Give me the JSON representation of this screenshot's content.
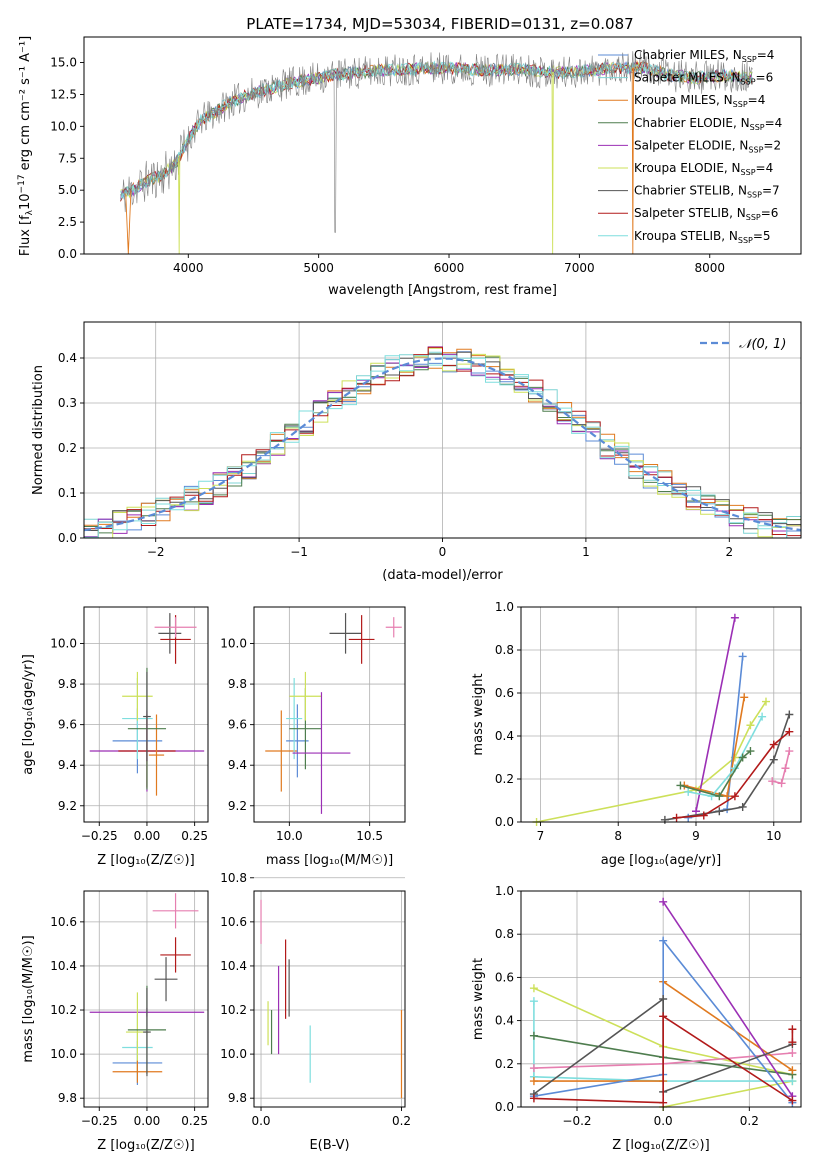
{
  "title": "PLATE=1734, MJD=53034, FIBERID=0131, z=0.087",
  "colors": {
    "chabrier_miles": "#5b8bd6",
    "salpeter_miles": "#7fd4d4",
    "kroupa_miles": "#e07a20",
    "chabrier_elodie": "#4e7d4e",
    "salpeter_elodie": "#9b2fb5",
    "kroupa_elodie": "#cde05a",
    "chabrier_stelib": "#555555",
    "salpeter_stelib": "#b21a1a",
    "kroupa_stelib": "#7fdede",
    "pink": "#e67fb0",
    "normal": "#5b8bd6"
  },
  "chart_data": [
    {
      "id": "spectrum",
      "type": "line",
      "title": "PLATE=1734, MJD=53034, FIBERID=0131, z=0.087",
      "xlabel": "wavelength [Angstrom, rest frame]",
      "ylabel_main": "Flux [f",
      "ylabel_sub": "λ",
      "ylabel_rest": "10",
      "ylabel_exp": "−17",
      "ylabel_units": "erg cm",
      "xlim": [
        3200,
        8700
      ],
      "ylim": [
        0,
        17
      ],
      "xticks": [
        "4000",
        "5000",
        "6000",
        "7000",
        "8000"
      ],
      "yticks": [
        "0.0",
        "2.5",
        "5.0",
        "7.5",
        "10.0",
        "12.5",
        "15.0"
      ],
      "legend_position": "upper-right",
      "legend": [
        {
          "name": "Chabrier MILES, N",
          "sub": "SSP",
          "val": "=4",
          "color": "#5b8bd6"
        },
        {
          "name": "Salpeter MILES, N",
          "sub": "SSP",
          "val": "=6",
          "color": "#7fd4d4"
        },
        {
          "name": "Kroupa MILES, N",
          "sub": "SSP",
          "val": "=4",
          "color": "#e07a20"
        },
        {
          "name": "Chabrier ELODIE, N",
          "sub": "SSP",
          "val": "=4",
          "color": "#4e7d4e"
        },
        {
          "name": "Salpeter ELODIE, N",
          "sub": "SSP",
          "val": "=2",
          "color": "#9b2fb5"
        },
        {
          "name": "Kroupa ELODIE, N",
          "sub": "SSP",
          "val": "=4",
          "color": "#cde05a"
        },
        {
          "name": "Chabrier STELIB, N",
          "sub": "SSP",
          "val": "=7",
          "color": "#555555"
        },
        {
          "name": "Salpeter STELIB, N",
          "sub": "SSP",
          "val": "=6",
          "color": "#b21a1a"
        },
        {
          "name": "Kroupa STELIB, N",
          "sub": "SSP",
          "val": "=5",
          "color": "#7fdede"
        }
      ],
      "continuum": {
        "x": [
          3480,
          3600,
          3700,
          3800,
          3900,
          4000,
          4100,
          4200,
          4300,
          4500,
          4700,
          4900,
          5100,
          5300,
          5500,
          5700,
          5900,
          6100,
          6300,
          6500,
          6700,
          6900,
          7100,
          7300,
          7500,
          7700,
          7900,
          8100,
          8300
        ],
        "y": [
          4.5,
          5.2,
          5.8,
          6.2,
          7.0,
          9.0,
          10.5,
          11.0,
          11.8,
          12.6,
          13.2,
          13.6,
          14.0,
          14.2,
          14.4,
          14.5,
          14.6,
          14.5,
          14.4,
          14.5,
          14.3,
          14.2,
          14.4,
          14.6,
          14.6,
          14.0,
          13.8,
          14.0,
          13.8
        ]
      }
    },
    {
      "id": "residuals",
      "type": "histogram",
      "xlabel": "(data-model)/error",
      "ylabel": "Normed distribution",
      "xlim": [
        -2.5,
        2.5
      ],
      "ylim": [
        0,
        0.48
      ],
      "xticks": [
        "−2",
        "−1",
        "0",
        "1",
        "2"
      ],
      "yticks": [
        "0.0",
        "0.1",
        "0.2",
        "0.3",
        "0.4"
      ],
      "bin_width": 0.1,
      "grid": true,
      "legend_label": "𝒩(0, 1)",
      "legend_position": "upper-right"
    },
    {
      "id": "age_vs_Z",
      "type": "scatter",
      "xlabel": "Z [log₁₀(Z/Z☉)]",
      "ylabel": "age  [log₁₀(age/yr)]",
      "xlim": [
        -0.33,
        0.32
      ],
      "ylim": [
        9.12,
        10.18
      ],
      "xticks": [
        "−0.25",
        "0.00",
        "0.25"
      ],
      "yticks": [
        "9.2",
        "9.4",
        "9.6",
        "9.8",
        "10.0"
      ],
      "points": [
        {
          "x": 0.0,
          "y": 9.47,
          "xerr": 0.3,
          "yerr": 0.2,
          "color": "#9b2fb5"
        },
        {
          "x": 0.0,
          "y": 9.47,
          "xerr": 0.15,
          "yerr": 0.18,
          "color": "#b21a1a"
        },
        {
          "x": -0.05,
          "y": 9.52,
          "xerr": 0.13,
          "yerr": 0.16,
          "color": "#5b8bd6"
        },
        {
          "x": 0.05,
          "y": 9.45,
          "xerr": 0.04,
          "yerr": 0.2,
          "color": "#e07a20"
        },
        {
          "x": -0.05,
          "y": 9.63,
          "xerr": 0.08,
          "yerr": 0.2,
          "color": "#7fdede"
        },
        {
          "x": -0.05,
          "y": 9.74,
          "xerr": 0.08,
          "yerr": 0.12,
          "color": "#cde05a"
        },
        {
          "x": 0.0,
          "y": 9.58,
          "xerr": 0.1,
          "yerr": 0.3,
          "color": "#4e7d4e"
        },
        {
          "x": 0.0,
          "y": 9.64,
          "xerr": 0.02,
          "yerr": 0.22,
          "color": "#555555"
        },
        {
          "x": 0.12,
          "y": 10.05,
          "xerr": 0.06,
          "yerr": 0.1,
          "color": "#555555"
        },
        {
          "x": 0.15,
          "y": 10.02,
          "xerr": 0.08,
          "yerr": 0.12,
          "color": "#b21a1a"
        },
        {
          "x": 0.15,
          "y": 10.08,
          "xerr": 0.11,
          "yerr": 0.05,
          "color": "#e67fb0"
        }
      ]
    },
    {
      "id": "age_vs_mass",
      "type": "scatter",
      "xlabel": "mass [log₁₀(M/M☉)]",
      "ylabel": "",
      "xlim": [
        9.78,
        10.72
      ],
      "ylim": [
        9.12,
        10.18
      ],
      "xticks": [
        "10.0",
        "10.5"
      ],
      "yticks": [
        "9.2",
        "9.4",
        "9.6",
        "9.8",
        "10.0"
      ],
      "points": [
        {
          "x": 9.95,
          "y": 9.47,
          "xerr": 0.1,
          "yerr": 0.2,
          "color": "#e07a20"
        },
        {
          "x": 10.05,
          "y": 9.52,
          "xerr": 0.07,
          "yerr": 0.18,
          "color": "#5b8bd6"
        },
        {
          "x": 10.03,
          "y": 9.63,
          "xerr": 0.05,
          "yerr": 0.2,
          "color": "#7fdede"
        },
        {
          "x": 10.1,
          "y": 9.58,
          "xerr": 0.1,
          "yerr": 0.2,
          "color": "#4e7d4e"
        },
        {
          "x": 10.1,
          "y": 9.74,
          "xerr": 0.1,
          "yerr": 0.12,
          "color": "#cde05a"
        },
        {
          "x": 10.2,
          "y": 9.46,
          "xerr": 0.18,
          "yerr": 0.3,
          "color": "#9b2fb5"
        },
        {
          "x": 10.35,
          "y": 10.05,
          "xerr": 0.1,
          "yerr": 0.1,
          "color": "#555555"
        },
        {
          "x": 10.45,
          "y": 10.02,
          "xerr": 0.08,
          "yerr": 0.12,
          "color": "#b21a1a"
        },
        {
          "x": 10.65,
          "y": 10.08,
          "xerr": 0.05,
          "yerr": 0.05,
          "color": "#e67fb0"
        }
      ]
    },
    {
      "id": "weight_vs_age",
      "type": "line",
      "xlabel": "age  [log₁₀(age/yr)]",
      "ylabel": "mass weight",
      "xlim": [
        6.75,
        10.35
      ],
      "ylim": [
        0,
        1.0
      ],
      "xticks": [
        "7",
        "8",
        "9",
        "10"
      ],
      "yticks": [
        "0.0",
        "0.2",
        "0.4",
        "0.6",
        "0.8",
        "1.0"
      ],
      "series": [
        {
          "color": "#cde05a",
          "x": [
            6.95,
            9.0,
            9.5,
            9.7,
            9.9
          ],
          "y": [
            0.0,
            0.15,
            0.3,
            0.45,
            0.56
          ]
        },
        {
          "color": "#9b2fb5",
          "x": [
            9.0,
            9.5
          ],
          "y": [
            0.05,
            0.95
          ]
        },
        {
          "color": "#5b8bd6",
          "x": [
            8.9,
            9.4,
            9.6
          ],
          "y": [
            0.02,
            0.06,
            0.77
          ]
        },
        {
          "color": "#e07a20",
          "x": [
            8.85,
            9.4,
            9.62
          ],
          "y": [
            0.17,
            0.12,
            0.58
          ]
        },
        {
          "color": "#7fdede",
          "x": [
            8.9,
            9.2,
            9.5,
            9.85
          ],
          "y": [
            0.14,
            0.12,
            0.25,
            0.49
          ]
        },
        {
          "color": "#4e7d4e",
          "x": [
            8.8,
            9.3,
            9.6,
            9.7
          ],
          "y": [
            0.17,
            0.12,
            0.3,
            0.33
          ]
        },
        {
          "color": "#555555",
          "x": [
            8.6,
            9.3,
            9.6,
            10.0,
            10.2
          ],
          "y": [
            0.01,
            0.05,
            0.07,
            0.29,
            0.5
          ]
        },
        {
          "color": "#b21a1a",
          "x": [
            8.75,
            9.1,
            9.5,
            10.0,
            10.2
          ],
          "y": [
            0.02,
            0.03,
            0.12,
            0.36,
            0.42
          ]
        },
        {
          "color": "#e67fb0",
          "x": [
            9.98,
            10.1,
            10.15,
            10.2
          ],
          "y": [
            0.19,
            0.18,
            0.25,
            0.33
          ]
        }
      ]
    },
    {
      "id": "mass_vs_Z",
      "type": "scatter",
      "xlabel": "Z [log₁₀(Z/Z☉)]",
      "ylabel": "mass [log₁₀(M/M☉)]",
      "xlim": [
        -0.33,
        0.32
      ],
      "ylim": [
        9.76,
        10.74
      ],
      "xticks": [
        "−0.25",
        "0.00",
        "0.25"
      ],
      "yticks": [
        "9.8",
        "10.0",
        "10.2",
        "10.4",
        "10.6"
      ],
      "points": [
        {
          "x": 0.0,
          "y": 10.19,
          "xerr": 0.3,
          "yerr": 0.02,
          "color": "#9b2fb5"
        },
        {
          "x": -0.05,
          "y": 9.96,
          "xerr": 0.13,
          "yerr": 0.1,
          "color": "#5b8bd6"
        },
        {
          "x": -0.05,
          "y": 10.03,
          "xerr": 0.08,
          "yerr": 0.15,
          "color": "#7fdede"
        },
        {
          "x": -0.05,
          "y": 10.1,
          "xerr": 0.06,
          "yerr": 0.18,
          "color": "#cde05a"
        },
        {
          "x": 0.0,
          "y": 10.11,
          "xerr": 0.1,
          "yerr": 0.2,
          "color": "#4e7d4e"
        },
        {
          "x": -0.05,
          "y": 9.92,
          "xerr": 0.13,
          "yerr": 0.05,
          "color": "#e07a20"
        },
        {
          "x": 0.0,
          "y": 10.1,
          "xerr": 0.02,
          "yerr": 0.2,
          "color": "#555555"
        },
        {
          "x": 0.1,
          "y": 10.34,
          "xerr": 0.06,
          "yerr": 0.1,
          "color": "#555555"
        },
        {
          "x": 0.15,
          "y": 10.45,
          "xerr": 0.08,
          "yerr": 0.08,
          "color": "#b21a1a"
        },
        {
          "x": 0.15,
          "y": 10.65,
          "xerr": 0.12,
          "yerr": 0.08,
          "color": "#e67fb0"
        }
      ]
    },
    {
      "id": "mass_vs_EBV",
      "type": "scatter",
      "xlabel": "E(B-V)",
      "ylabel": "",
      "xlim": [
        -0.01,
        0.205
      ],
      "ylim": [
        9.76,
        10.74
      ],
      "xticks": [
        "0.0",
        "0.2"
      ],
      "yticks": [
        "9.8",
        "10.0",
        "10.2",
        "10.4",
        "10.6",
        "10.8"
      ],
      "points": [
        {
          "x": 0.0,
          "y": 10.6,
          "xerr": 0.0,
          "yerr": 0.1,
          "color": "#e67fb0"
        },
        {
          "x": 0.01,
          "y": 10.14,
          "xerr": 0.0,
          "yerr": 0.1,
          "color": "#cde05a"
        },
        {
          "x": 0.015,
          "y": 10.1,
          "xerr": 0.0,
          "yerr": 0.1,
          "color": "#4e7d4e"
        },
        {
          "x": 0.025,
          "y": 10.2,
          "xerr": 0.0,
          "yerr": 0.2,
          "color": "#9b2fb5"
        },
        {
          "x": 0.035,
          "y": 10.34,
          "xerr": 0.0,
          "yerr": 0.18,
          "color": "#b21a1a"
        },
        {
          "x": 0.04,
          "y": 10.3,
          "xerr": 0.0,
          "yerr": 0.13,
          "color": "#555555"
        },
        {
          "x": 0.07,
          "y": 10.0,
          "xerr": 0.0,
          "yerr": 0.13,
          "color": "#7fdede"
        },
        {
          "x": 0.2,
          "y": 10.0,
          "xerr": 0.0,
          "yerr": 0.2,
          "color": "#e07a20"
        }
      ]
    },
    {
      "id": "weight_vs_Z",
      "type": "line",
      "xlabel": "Z [log₁₀(Z/Z☉)]",
      "ylabel": "mass weight",
      "xlim": [
        -0.33,
        0.32
      ],
      "ylim": [
        0,
        1.0
      ],
      "xticks": [
        "−0.2",
        "0.0",
        "0.2"
      ],
      "yticks": [
        "0.0",
        "0.2",
        "0.4",
        "0.6",
        "0.8",
        "1.0"
      ],
      "series": [
        {
          "color": "#cde05a",
          "x": [
            -0.3,
            0.0,
            0.3
          ],
          "y": [
            0.55,
            0.28,
            0.15
          ]
        },
        {
          "color": "#cde05a",
          "x": [
            0.0,
            0.3
          ],
          "y": [
            0.0,
            0.12
          ]
        },
        {
          "color": "#7fdede",
          "x": [
            -0.3,
            -0.3,
            0.0,
            0.3
          ],
          "y": [
            0.49,
            0.14,
            0.12,
            0.12
          ]
        },
        {
          "color": "#4e7d4e",
          "x": [
            -0.3,
            0.0,
            0.3
          ],
          "y": [
            0.33,
            0.23,
            0.15
          ]
        },
        {
          "color": "#e67fb0",
          "x": [
            -0.3,
            0.0,
            0.3
          ],
          "y": [
            0.18,
            0.2,
            0.25
          ]
        },
        {
          "color": "#e07a20",
          "x": [
            -0.3,
            0.0,
            0.0,
            0.3
          ],
          "y": [
            0.12,
            0.12,
            0.58,
            0.17
          ]
        },
        {
          "color": "#9b2fb5",
          "x": [
            0.0,
            0.3
          ],
          "y": [
            0.95,
            0.05
          ]
        },
        {
          "color": "#5b8bd6",
          "x": [
            -0.3,
            0.0,
            0.0,
            0.3
          ],
          "y": [
            0.05,
            0.15,
            0.77,
            0.02
          ]
        },
        {
          "color": "#555555",
          "x": [
            -0.3,
            0.0,
            0.0,
            0.3
          ],
          "y": [
            0.06,
            0.5,
            0.07,
            0.29
          ]
        },
        {
          "color": "#b21a1a",
          "x": [
            -0.3,
            0.0,
            0.0,
            0.3
          ],
          "y": [
            0.04,
            0.02,
            0.42,
            0.03
          ]
        },
        {
          "color": "#b21a1a",
          "x": [
            0.3,
            0.3
          ],
          "y": [
            0.3,
            0.36
          ]
        }
      ]
    }
  ]
}
